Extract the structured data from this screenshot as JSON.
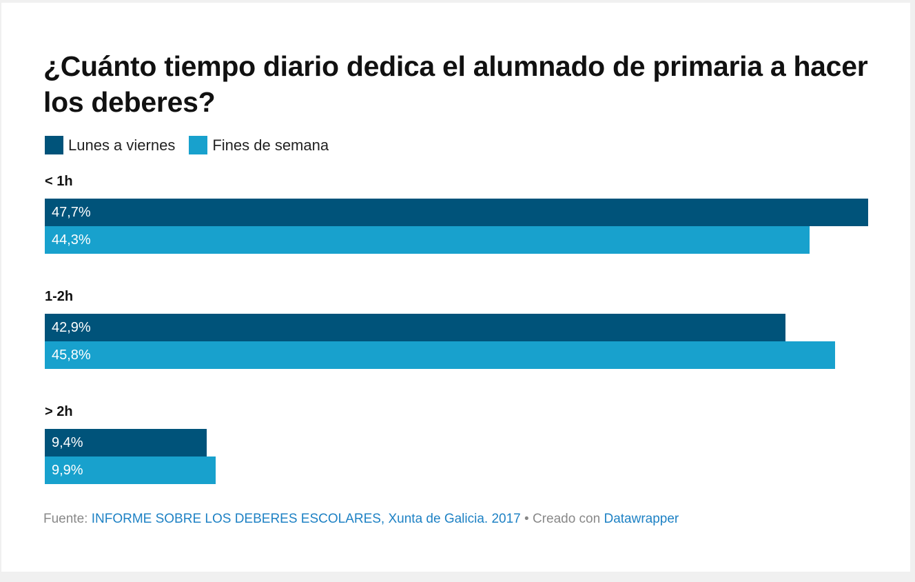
{
  "title": "¿Cuánto tiempo diario dedica el alumnado de primaria a hacer los deberes?",
  "colors": {
    "lunes": "#00537a",
    "fines": "#18a1cd",
    "link": "#1d81c4"
  },
  "chart_data": {
    "type": "bar",
    "orientation": "horizontal",
    "title": "¿Cuánto tiempo diario dedica el alumnado de primaria a hacer los deberes?",
    "categories": [
      "< 1h",
      "1-2h",
      "> 2h"
    ],
    "series": [
      {
        "name": "Lunes a viernes",
        "values": [
          47.7,
          42.9,
          9.4
        ],
        "labels": [
          "47,7%",
          "42,9%",
          "9,4%"
        ],
        "color": "#00537a"
      },
      {
        "name": "Fines de semana",
        "values": [
          44.3,
          45.8,
          9.9
        ],
        "labels": [
          "44,3%",
          "45,8%",
          "9,9%"
        ],
        "color": "#18a1cd"
      }
    ],
    "xlim": [
      0,
      47.7
    ],
    "grid": false,
    "legend": "top-left"
  },
  "footer": {
    "source_prefix": "Fuente: ",
    "source_link": "INFORME SOBRE LOS DEBERES ESCOLARES, Xunta de Galicia. 2017",
    "separator": " • Creado con ",
    "tool_link": "Datawrapper"
  }
}
